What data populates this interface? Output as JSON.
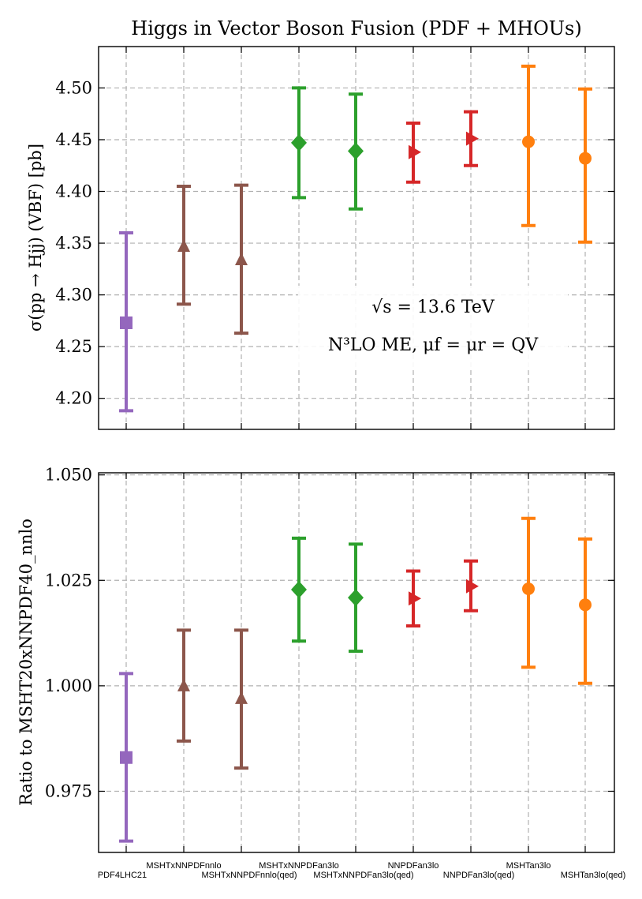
{
  "chart_data": [
    {
      "type": "errorbar",
      "title": "Higgs in Vector Boson Fusion (PDF + MHOUs)",
      "ylabel": "σ(pp → Hjj) (VBF) [pb]",
      "xlabel": "",
      "ylim": [
        4.17,
        4.54
      ],
      "yticks": [
        "4.20",
        "4.25",
        "4.30",
        "4.35",
        "4.40",
        "4.45",
        "4.50"
      ],
      "grid": true,
      "annotation_line1": "√s = 13.6 TeV",
      "annotation_line2": "N³LO ME, μf = μr = QV",
      "points": [
        {
          "label": "PDF4LHC21",
          "value": 4.273,
          "low": 4.188,
          "high": 4.36,
          "color": "#9467bd",
          "marker": "square"
        },
        {
          "label": "MSHTxNNPDFnnlo",
          "value": 4.347,
          "low": 4.291,
          "high": 4.405,
          "color": "#8c564b",
          "marker": "triangle-up"
        },
        {
          "label": "MSHTxNNPDFnnlo(qed)",
          "value": 4.334,
          "low": 4.263,
          "high": 4.406,
          "color": "#8c564b",
          "marker": "triangle-up"
        },
        {
          "label": "MSHTxNNPDFan3lo",
          "value": 4.447,
          "low": 4.394,
          "high": 4.5,
          "color": "#2ca02c",
          "marker": "diamond"
        },
        {
          "label": "MSHTxNNPDFan3lo(qed)",
          "value": 4.439,
          "low": 4.383,
          "high": 4.494,
          "color": "#2ca02c",
          "marker": "diamond"
        },
        {
          "label": "NNPDFan3lo",
          "value": 4.438,
          "low": 4.409,
          "high": 4.466,
          "color": "#d62728",
          "marker": "triangle-right"
        },
        {
          "label": "NNPDFan3lo(qed)",
          "value": 4.451,
          "low": 4.425,
          "high": 4.477,
          "color": "#d62728",
          "marker": "triangle-right"
        },
        {
          "label": "MSHTan3lo",
          "value": 4.448,
          "low": 4.367,
          "high": 4.521,
          "color": "#ff7f0e",
          "marker": "circle"
        },
        {
          "label": "MSHTan3lo(qed)",
          "value": 4.432,
          "low": 4.351,
          "high": 4.499,
          "color": "#ff7f0e",
          "marker": "circle"
        }
      ]
    },
    {
      "type": "errorbar",
      "title": "",
      "ylabel": "Ratio to MSHT20xNNPDF40_nnlo",
      "xlabel": "",
      "ylim": [
        0.9605,
        1.0505
      ],
      "yticks": [
        "0.975",
        "1.000",
        "1.025",
        "1.050"
      ],
      "grid": true,
      "points": [
        {
          "label": "PDF4LHC21",
          "value": 0.983,
          "low": 0.9632,
          "high": 1.0029,
          "color": "#9467bd",
          "marker": "square"
        },
        {
          "label": "MSHTxNNPDFnnlo",
          "value": 1.0,
          "low": 0.9869,
          "high": 1.0132,
          "color": "#8c564b",
          "marker": "triangle-up"
        },
        {
          "label": "MSHTxNNPDFnnlo(qed)",
          "value": 0.997,
          "low": 0.9805,
          "high": 1.0132,
          "color": "#8c564b",
          "marker": "triangle-up"
        },
        {
          "label": "MSHTxNNPDFan3lo",
          "value": 1.0228,
          "low": 1.0106,
          "high": 1.035,
          "color": "#2ca02c",
          "marker": "diamond"
        },
        {
          "label": "MSHTxNNPDFan3lo(qed)",
          "value": 1.0209,
          "low": 1.0082,
          "high": 1.0336,
          "color": "#2ca02c",
          "marker": "diamond"
        },
        {
          "label": "NNPDFan3lo",
          "value": 1.0207,
          "low": 1.0142,
          "high": 1.0272,
          "color": "#d62728",
          "marker": "triangle-right"
        },
        {
          "label": "NNPDFan3lo(qed)",
          "value": 1.0236,
          "low": 1.0178,
          "high": 1.0296,
          "color": "#d62728",
          "marker": "triangle-right"
        },
        {
          "label": "MSHTan3lo",
          "value": 1.023,
          "low": 1.0044,
          "high": 1.0397,
          "color": "#ff7f0e",
          "marker": "circle"
        },
        {
          "label": "MSHTan3lo(qed)",
          "value": 1.0192,
          "low": 1.0006,
          "high": 1.0348,
          "color": "#ff7f0e",
          "marker": "circle"
        }
      ]
    }
  ]
}
